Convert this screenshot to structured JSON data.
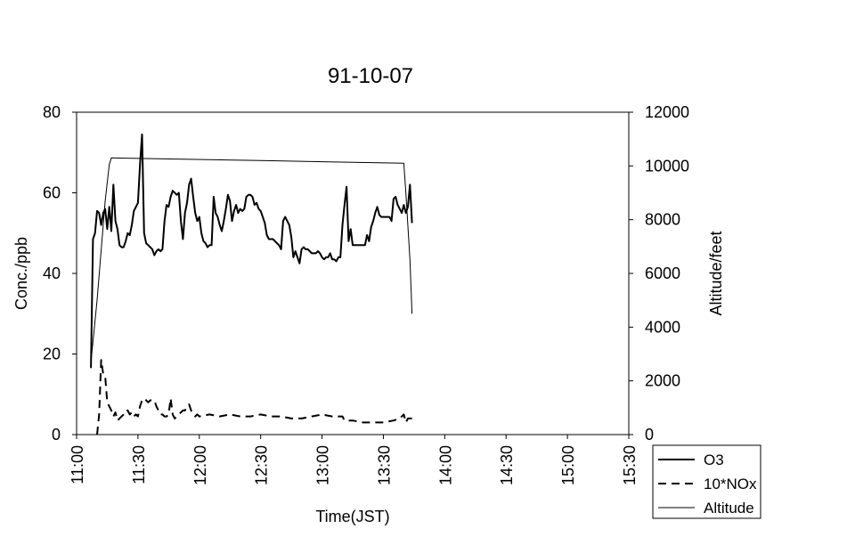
{
  "chart_data": {
    "type": "line",
    "title": "91-10-07",
    "xlabel": "Time(JST)",
    "ylabel": "Conc./ppb",
    "y2label": "Altitude/feet",
    "xlim": [
      "11:00",
      "15:30"
    ],
    "ylim": [
      0,
      80
    ],
    "y2lim": [
      0,
      12000
    ],
    "xticks": [
      "11:00",
      "11:30",
      "12:00",
      "12:30",
      "13:00",
      "13:30",
      "14:00",
      "14:30",
      "15:00",
      "15:30"
    ],
    "yticks": [
      "0",
      "20",
      "40",
      "60",
      "80"
    ],
    "y2ticks": [
      "0",
      "2000",
      "4000",
      "6000",
      "8000",
      "10000",
      "12000"
    ],
    "grid": false,
    "legend": "bottom-right outside",
    "series": [
      {
        "name": "O3",
        "axis": "left",
        "style": "solid-thick",
        "points": [
          [
            "11:07",
            16.5
          ],
          [
            "11:08",
            48.5
          ],
          [
            "11:09",
            50
          ],
          [
            "11:10",
            55.5
          ],
          [
            "11:11",
            55
          ],
          [
            "11:12",
            52
          ],
          [
            "11:13",
            55
          ],
          [
            "11:14",
            56
          ],
          [
            "11:15",
            51
          ],
          [
            "11:16",
            56.5
          ],
          [
            "11:17",
            50.5
          ],
          [
            "11:18",
            62
          ],
          [
            "11:19",
            53
          ],
          [
            "11:20",
            51
          ],
          [
            "11:21",
            47
          ],
          [
            "11:22",
            46.5
          ],
          [
            "11:23",
            46.5
          ],
          [
            "11:24",
            48
          ],
          [
            "11:25",
            50
          ],
          [
            "11:26",
            49.5
          ],
          [
            "11:27",
            52
          ],
          [
            "11:28",
            55.5
          ],
          [
            "11:29",
            56.5
          ],
          [
            "11:30",
            57.5
          ],
          [
            "11:31",
            67
          ],
          [
            "11:32",
            74.5
          ],
          [
            "11:33",
            50
          ],
          [
            "11:34",
            47.5
          ],
          [
            "11:35",
            47
          ],
          [
            "11:36",
            46.5
          ],
          [
            "11:37",
            46
          ],
          [
            "11:38",
            44.5
          ],
          [
            "11:39",
            45.5
          ],
          [
            "11:40",
            46
          ],
          [
            "11:41",
            45.5
          ],
          [
            "11:42",
            46
          ],
          [
            "11:43",
            53
          ],
          [
            "11:44",
            57
          ],
          [
            "11:45",
            56.5
          ],
          [
            "11:46",
            59
          ],
          [
            "11:47",
            60.5
          ],
          [
            "11:48",
            60
          ],
          [
            "11:49",
            59.5
          ],
          [
            "11:50",
            60
          ],
          [
            "11:51",
            53
          ],
          [
            "11:52",
            48.5
          ],
          [
            "11:53",
            55
          ],
          [
            "11:54",
            57.5
          ],
          [
            "11:55",
            62
          ],
          [
            "11:56",
            63.5
          ],
          [
            "11:57",
            59
          ],
          [
            "11:58",
            55
          ],
          [
            "11:59",
            53
          ],
          [
            "12:00",
            54
          ],
          [
            "12:01",
            50
          ],
          [
            "12:02",
            48
          ],
          [
            "12:03",
            47.5
          ],
          [
            "12:04",
            46.5
          ],
          [
            "12:05",
            47
          ],
          [
            "12:06",
            47
          ],
          [
            "12:07",
            59
          ],
          [
            "12:08",
            55
          ],
          [
            "12:09",
            54
          ],
          [
            "12:10",
            52
          ],
          [
            "12:11",
            50.5
          ],
          [
            "12:12",
            53
          ],
          [
            "12:13",
            56
          ],
          [
            "12:14",
            59.5
          ],
          [
            "12:15",
            58
          ],
          [
            "12:16",
            53
          ],
          [
            "12:17",
            55.5
          ],
          [
            "12:18",
            57
          ],
          [
            "12:19",
            55
          ],
          [
            "12:20",
            56
          ],
          [
            "12:21",
            55.5
          ],
          [
            "12:22",
            56
          ],
          [
            "12:23",
            59
          ],
          [
            "12:24",
            59.5
          ],
          [
            "12:25",
            59.5
          ],
          [
            "12:26",
            59
          ],
          [
            "12:27",
            57
          ],
          [
            "12:28",
            57.5
          ],
          [
            "12:29",
            56
          ],
          [
            "12:30",
            55.5
          ],
          [
            "12:31",
            54
          ],
          [
            "12:32",
            52.5
          ],
          [
            "12:33",
            49.5
          ],
          [
            "12:34",
            48.5
          ],
          [
            "12:35",
            48.5
          ],
          [
            "12:36",
            48.5
          ],
          [
            "12:37",
            48
          ],
          [
            "12:38",
            47.5
          ],
          [
            "12:39",
            47
          ],
          [
            "12:40",
            46
          ],
          [
            "12:41",
            53
          ],
          [
            "12:42",
            54
          ],
          [
            "12:43",
            53
          ],
          [
            "12:44",
            52
          ],
          [
            "12:45",
            49
          ],
          [
            "12:46",
            44
          ],
          [
            "12:47",
            45.5
          ],
          [
            "12:48",
            44
          ],
          [
            "12:49",
            42.5
          ],
          [
            "12:50",
            46
          ],
          [
            "12:51",
            46.5
          ],
          [
            "12:52",
            46
          ],
          [
            "12:53",
            46
          ],
          [
            "12:54",
            45.5
          ],
          [
            "12:55",
            45
          ],
          [
            "12:56",
            45
          ],
          [
            "12:57",
            45
          ],
          [
            "12:58",
            45.5
          ],
          [
            "12:59",
            45
          ],
          [
            "13:00",
            44
          ],
          [
            "13:01",
            43.5
          ],
          [
            "13:02",
            44
          ],
          [
            "13:03",
            44
          ],
          [
            "13:04",
            45
          ],
          [
            "13:05",
            43.5
          ],
          [
            "13:06",
            43.5
          ],
          [
            "13:07",
            43
          ],
          [
            "13:08",
            44
          ],
          [
            "13:09",
            44
          ],
          [
            "13:10",
            52
          ],
          [
            "13:11",
            57
          ],
          [
            "13:12",
            61.5
          ],
          [
            "13:13",
            48
          ],
          [
            "13:14",
            51
          ],
          [
            "13:15",
            47
          ],
          [
            "13:16",
            47
          ],
          [
            "13:17",
            47
          ],
          [
            "13:18",
            47
          ],
          [
            "13:19",
            47
          ],
          [
            "13:20",
            47
          ],
          [
            "13:21",
            47
          ],
          [
            "13:22",
            49.5
          ],
          [
            "13:23",
            48
          ],
          [
            "13:24",
            51.5
          ],
          [
            "13:25",
            53
          ],
          [
            "13:26",
            55
          ],
          [
            "13:27",
            56.5
          ],
          [
            "13:28",
            54.5
          ],
          [
            "13:29",
            54
          ],
          [
            "13:30",
            54
          ],
          [
            "13:31",
            54
          ],
          [
            "13:32",
            54
          ],
          [
            "13:33",
            54
          ],
          [
            "13:34",
            53
          ],
          [
            "13:35",
            58.5
          ],
          [
            "13:36",
            59
          ],
          [
            "13:37",
            57
          ],
          [
            "13:38",
            56
          ],
          [
            "13:39",
            55
          ],
          [
            "13:40",
            57
          ],
          [
            "13:41",
            55
          ],
          [
            "13:42",
            56.5
          ],
          [
            "13:43",
            62
          ],
          [
            "13:44",
            52.5
          ]
        ]
      },
      {
        "name": "10*NOx",
        "axis": "left",
        "style": "dashed",
        "points": [
          [
            "11:10",
            0
          ],
          [
            "11:11",
            5
          ],
          [
            "11:12",
            18.5
          ],
          [
            "11:13",
            15
          ],
          [
            "11:14",
            14.5
          ],
          [
            "11:15",
            8
          ],
          [
            "11:16",
            7
          ],
          [
            "11:17",
            6
          ],
          [
            "11:18",
            4.5
          ],
          [
            "11:19",
            5.5
          ],
          [
            "11:20",
            3.5
          ],
          [
            "11:21",
            4
          ],
          [
            "11:22",
            4.5
          ],
          [
            "11:23",
            5
          ],
          [
            "11:24",
            6
          ],
          [
            "11:25",
            6
          ],
          [
            "11:26",
            5
          ],
          [
            "11:27",
            5.5
          ],
          [
            "11:28",
            4.5
          ],
          [
            "11:29",
            5
          ],
          [
            "11:30",
            4.5
          ],
          [
            "11:31",
            7
          ],
          [
            "11:32",
            8.5
          ],
          [
            "11:33",
            9
          ],
          [
            "11:34",
            8.5
          ],
          [
            "11:35",
            8
          ],
          [
            "11:36",
            8.5
          ],
          [
            "11:37",
            8.5
          ],
          [
            "11:38",
            8.5
          ],
          [
            "11:39",
            7
          ],
          [
            "11:40",
            6
          ],
          [
            "11:41",
            5
          ],
          [
            "11:42",
            5
          ],
          [
            "11:43",
            4.5
          ],
          [
            "11:44",
            4.5
          ],
          [
            "11:45",
            5
          ],
          [
            "11:46",
            9
          ],
          [
            "11:47",
            5
          ],
          [
            "11:48",
            4
          ],
          [
            "11:49",
            4.5
          ],
          [
            "11:50",
            5
          ],
          [
            "11:51",
            5.5
          ],
          [
            "11:52",
            6
          ],
          [
            "11:53",
            6
          ],
          [
            "11:54",
            7
          ],
          [
            "11:55",
            7.5
          ],
          [
            "11:56",
            6
          ],
          [
            "11:57",
            5
          ],
          [
            "11:58",
            4.5
          ],
          [
            "11:59",
            5
          ],
          [
            "12:00",
            4.5
          ],
          [
            "12:05",
            5
          ],
          [
            "12:10",
            4.5
          ],
          [
            "12:15",
            5
          ],
          [
            "12:20",
            4.5
          ],
          [
            "12:25",
            4.5
          ],
          [
            "12:30",
            5
          ],
          [
            "12:35",
            4.5
          ],
          [
            "12:40",
            4.5
          ],
          [
            "12:45",
            4
          ],
          [
            "12:50",
            4
          ],
          [
            "12:55",
            4.5
          ],
          [
            "13:00",
            5
          ],
          [
            "13:05",
            4.5
          ],
          [
            "13:10",
            4.5
          ],
          [
            "13:11",
            3.5
          ],
          [
            "13:15",
            3.5
          ],
          [
            "13:20",
            3
          ],
          [
            "13:25",
            3
          ],
          [
            "13:30",
            3
          ],
          [
            "13:35",
            3.5
          ],
          [
            "13:38",
            4
          ],
          [
            "13:40",
            5
          ],
          [
            "13:41",
            3
          ],
          [
            "13:42",
            4
          ],
          [
            "13:44",
            4
          ]
        ]
      },
      {
        "name": "Altitude",
        "axis": "right",
        "style": "solid-thin",
        "points": [
          [
            "11:07",
            2700
          ],
          [
            "11:10",
            5000
          ],
          [
            "11:14",
            8700
          ],
          [
            "11:16",
            10050
          ],
          [
            "11:17",
            10300
          ],
          [
            "12:30",
            10200
          ],
          [
            "13:40",
            10100
          ],
          [
            "13:41",
            9000
          ],
          [
            "13:43",
            6500
          ],
          [
            "13:44",
            4500
          ]
        ]
      }
    ]
  }
}
